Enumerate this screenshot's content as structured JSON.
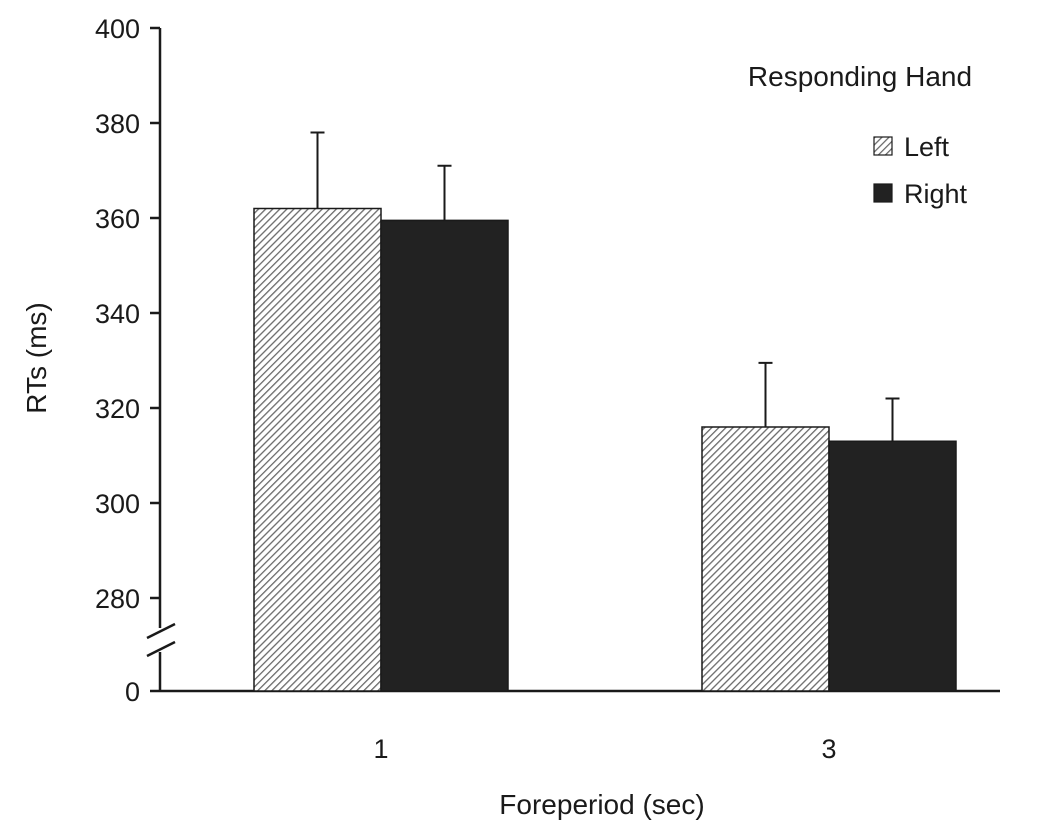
{
  "chart_data": {
    "type": "bar",
    "categories": [
      "1",
      "3"
    ],
    "xlabel": "Foreperiod (sec)",
    "ylabel": "RTs (ms)",
    "ylim": [
      270,
      400
    ],
    "yticks": [
      "0",
      "280",
      "300",
      "320",
      "340",
      "360",
      "380",
      "400"
    ],
    "axis_break": true,
    "grid": false,
    "legend": {
      "title": "Responding Hand",
      "position": "top-right"
    },
    "series": [
      {
        "name": "Left",
        "values": [
          362,
          316
        ],
        "errors": [
          16,
          13.5
        ],
        "fill": "hatched",
        "color": "#777777"
      },
      {
        "name": "Right",
        "values": [
          359.5,
          313
        ],
        "errors": [
          11.5,
          9
        ],
        "fill": "solid",
        "color": "#222222"
      }
    ]
  }
}
